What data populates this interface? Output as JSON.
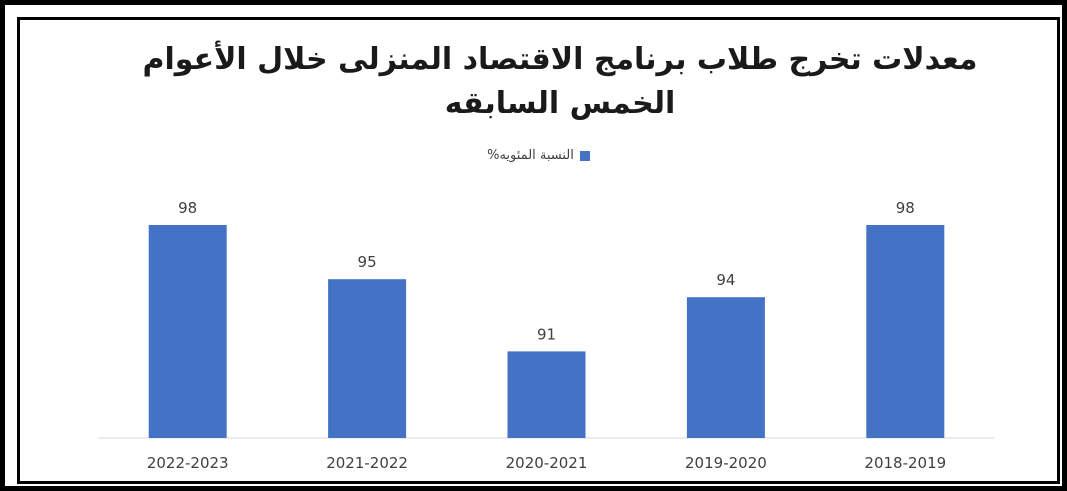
{
  "chart_data": {
    "type": "bar",
    "title": "معدلات تخرج طلاب برنامج الاقتصاد المنزلى خلال الأعوام الخمس السابقه",
    "categories": [
      "2018-2019",
      "2019-2020",
      "2020-2021",
      "2021-2022",
      "2022-2023"
    ],
    "series": [
      {
        "name": "النسبة المئويه%",
        "values": [
          98,
          94,
          91,
          95,
          98
        ],
        "color": "#4472C4"
      }
    ],
    "data_labels": [
      "98",
      "94",
      "91",
      "95",
      "98"
    ],
    "x_axis_direction": "right-to-left",
    "legend_position": "top",
    "grid": false
  }
}
